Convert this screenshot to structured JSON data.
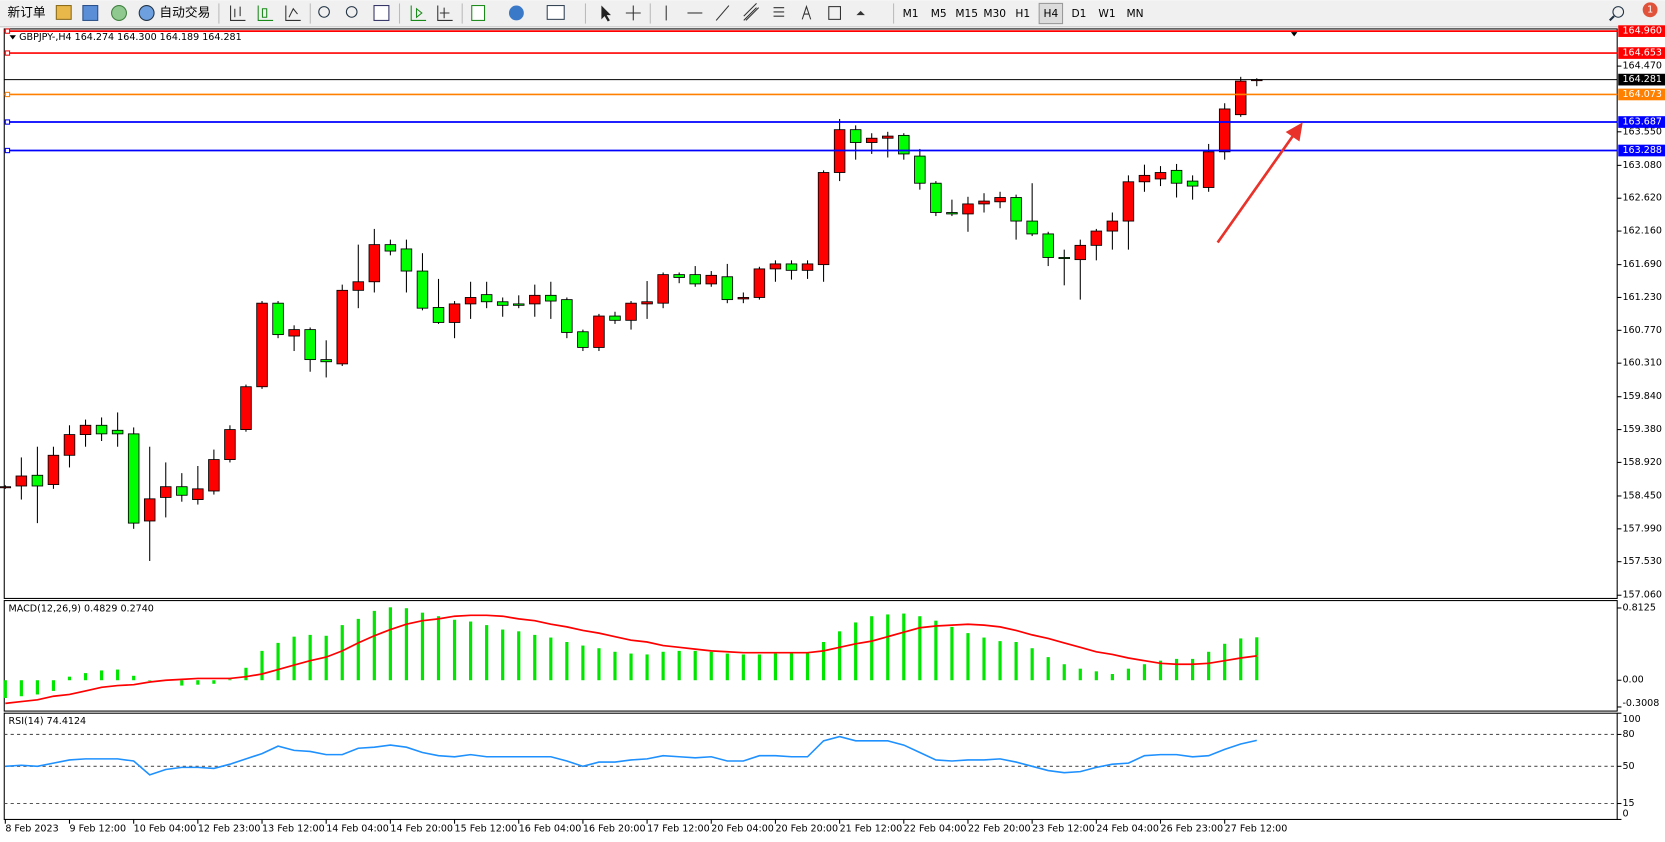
{
  "toolbar": {
    "new_order": "新订单",
    "auto_trade": "自动交易",
    "timeframes": [
      "M1",
      "M5",
      "M15",
      "M30",
      "H1",
      "H4",
      "D1",
      "W1",
      "MN"
    ],
    "active_timeframe": "H4",
    "notifications": 1
  },
  "chart_data": [
    {
      "type": "candlestick",
      "title": "GBPJPY-,H4 164.274 164.300 164.189 164.281",
      "up_color": "#ff0000",
      "down_color": "#00ff00",
      "categories": [
        "8 Feb 2023",
        null,
        null,
        null,
        "9 Feb 12:00",
        null,
        null,
        null,
        "10 Feb 04:00",
        null,
        null,
        null,
        "12 Feb 23:00",
        null,
        null,
        null,
        "13 Feb 12:00",
        null,
        null,
        null,
        "14 Feb 04:00",
        null,
        null,
        null,
        "14 Feb 20:00",
        null,
        null,
        null,
        "15 Feb 12:00",
        null,
        null,
        null,
        "16 Feb 04:00",
        null,
        null,
        null,
        "16 Feb 20:00",
        null,
        null,
        null,
        "17 Feb 12:00",
        null,
        null,
        null,
        "20 Feb 04:00",
        null,
        null,
        null,
        "20 Feb 20:00",
        null,
        null,
        null,
        "21 Feb 12:00",
        null,
        null,
        null,
        "22 Feb 04:00",
        null,
        null,
        null,
        "22 Feb 20:00",
        null,
        null,
        null,
        "23 Feb 12:00",
        null,
        null,
        null,
        "24 Feb 04:00",
        null,
        null,
        null,
        "26 Feb 23:00",
        null,
        null,
        null,
        "27 Feb 12:00",
        null,
        null
      ],
      "ohlc": [
        [
          158.57,
          158.6,
          158.55,
          158.58
        ],
        [
          158.59,
          158.99,
          158.4,
          158.73
        ],
        [
          158.74,
          159.14,
          158.07,
          158.59
        ],
        [
          158.61,
          159.14,
          158.55,
          159.02
        ],
        [
          159.02,
          159.44,
          158.85,
          159.31
        ],
        [
          159.31,
          159.52,
          159.14,
          159.44
        ],
        [
          159.44,
          159.55,
          159.22,
          159.32
        ],
        [
          159.37,
          159.62,
          159.14,
          159.32
        ],
        [
          159.32,
          159.41,
          157.99,
          158.07
        ],
        [
          158.1,
          159.14,
          157.54,
          158.41
        ],
        [
          158.43,
          158.92,
          158.15,
          158.58
        ],
        [
          158.58,
          158.77,
          158.37,
          158.46
        ],
        [
          158.4,
          158.87,
          158.33,
          158.55
        ],
        [
          158.52,
          159.1,
          158.47,
          158.96
        ],
        [
          158.96,
          159.44,
          158.92,
          159.38
        ],
        [
          159.38,
          160.01,
          159.35,
          159.98
        ],
        [
          159.98,
          161.18,
          159.95,
          161.15
        ],
        [
          161.15,
          161.18,
          160.66,
          160.71
        ],
        [
          160.69,
          160.84,
          160.48,
          160.78
        ],
        [
          160.78,
          160.81,
          160.19,
          160.36
        ],
        [
          160.36,
          160.63,
          160.11,
          160.33
        ],
        [
          160.3,
          161.41,
          160.27,
          161.33
        ],
        [
          161.33,
          161.97,
          161.08,
          161.45
        ],
        [
          161.45,
          162.19,
          161.3,
          161.97
        ],
        [
          161.97,
          162.04,
          161.82,
          161.88
        ],
        [
          161.91,
          162.04,
          161.3,
          161.6
        ],
        [
          161.6,
          161.85,
          161.05,
          161.08
        ],
        [
          161.09,
          161.49,
          160.86,
          160.88
        ],
        [
          160.88,
          161.18,
          160.66,
          161.14
        ],
        [
          161.14,
          161.45,
          160.93,
          161.23
        ],
        [
          161.27,
          161.45,
          161.08,
          161.17
        ],
        [
          161.17,
          161.23,
          160.96,
          161.12
        ],
        [
          161.14,
          161.26,
          161.08,
          161.12
        ],
        [
          161.14,
          161.41,
          160.96,
          161.26
        ],
        [
          161.26,
          161.45,
          160.93,
          161.18
        ],
        [
          161.2,
          161.23,
          160.66,
          160.74
        ],
        [
          160.75,
          160.78,
          160.48,
          160.53
        ],
        [
          160.53,
          161.0,
          160.48,
          160.97
        ],
        [
          160.97,
          161.03,
          160.86,
          160.91
        ],
        [
          160.91,
          161.18,
          160.78,
          161.15
        ],
        [
          161.14,
          161.46,
          160.93,
          161.17
        ],
        [
          161.15,
          161.58,
          161.08,
          161.55
        ],
        [
          161.55,
          161.58,
          161.43,
          161.51
        ],
        [
          161.55,
          161.67,
          161.38,
          161.42
        ],
        [
          161.42,
          161.6,
          161.38,
          161.54
        ],
        [
          161.52,
          161.7,
          161.15,
          161.2
        ],
        [
          161.21,
          161.3,
          161.15,
          161.23
        ],
        [
          161.23,
          161.66,
          161.2,
          161.63
        ],
        [
          161.63,
          161.75,
          161.45,
          161.7
        ],
        [
          161.7,
          161.75,
          161.48,
          161.61
        ],
        [
          161.61,
          161.75,
          161.49,
          161.7
        ],
        [
          161.69,
          163.01,
          161.45,
          162.98
        ],
        [
          162.98,
          163.73,
          162.86,
          163.58
        ],
        [
          163.58,
          163.64,
          163.16,
          163.4
        ],
        [
          163.4,
          163.53,
          163.24,
          163.46
        ],
        [
          163.46,
          163.55,
          163.19,
          163.49
        ],
        [
          163.5,
          163.53,
          163.16,
          163.24
        ],
        [
          163.21,
          163.31,
          162.74,
          162.83
        ],
        [
          162.83,
          162.86,
          162.37,
          162.42
        ],
        [
          162.42,
          162.6,
          162.37,
          162.4
        ],
        [
          162.4,
          162.64,
          162.15,
          162.54
        ],
        [
          162.54,
          162.69,
          162.42,
          162.58
        ],
        [
          162.57,
          162.71,
          162.48,
          162.63
        ],
        [
          162.63,
          162.67,
          162.04,
          162.3
        ],
        [
          162.3,
          162.83,
          162.09,
          162.12
        ],
        [
          162.12,
          162.15,
          161.67,
          161.79
        ],
        [
          161.79,
          161.9,
          161.4,
          161.78
        ],
        [
          161.76,
          162.04,
          161.2,
          161.96
        ],
        [
          161.96,
          162.19,
          161.75,
          162.16
        ],
        [
          162.16,
          162.42,
          161.9,
          162.3
        ],
        [
          162.3,
          162.94,
          161.9,
          162.85
        ],
        [
          162.85,
          163.09,
          162.71,
          162.94
        ],
        [
          162.89,
          163.07,
          162.79,
          162.98
        ],
        [
          163.01,
          163.1,
          162.63,
          162.83
        ],
        [
          162.86,
          162.94,
          162.6,
          162.79
        ],
        [
          162.77,
          163.38,
          162.71,
          163.27
        ],
        [
          163.27,
          163.95,
          163.16,
          163.87
        ],
        [
          163.79,
          164.32,
          163.76,
          164.26
        ],
        [
          164.274,
          164.3,
          164.189,
          164.281
        ]
      ],
      "ylim": [
        157.03,
        164.97
      ],
      "yticks": [
        {
          "value": 164.47,
          "label": "164.470"
        },
        {
          "value": 163.55,
          "label": "163.550"
        },
        {
          "value": 163.08,
          "label": "163.080"
        },
        {
          "value": 162.62,
          "label": "162.620"
        },
        {
          "value": 162.16,
          "label": "162.160"
        },
        {
          "value": 161.69,
          "label": "161.690"
        },
        {
          "value": 161.23,
          "label": "161.230"
        },
        {
          "value": 160.77,
          "label": "160.770"
        },
        {
          "value": 160.31,
          "label": "160.310"
        },
        {
          "value": 159.84,
          "label": "159.840"
        },
        {
          "value": 159.38,
          "label": "159.380"
        },
        {
          "value": 158.92,
          "label": "158.920"
        },
        {
          "value": 158.45,
          "label": "158.450"
        },
        {
          "value": 157.99,
          "label": "157.990"
        },
        {
          "value": 157.53,
          "label": "157.530"
        },
        {
          "value": 157.06,
          "label": "157.060"
        }
      ],
      "levels": [
        {
          "value": 164.96,
          "label": "164.960",
          "color": "#ff0000"
        },
        {
          "value": 164.653,
          "label": "164.653",
          "color": "#ff0000"
        },
        {
          "value": 164.073,
          "label": "164.073",
          "color": "#ff8000"
        },
        {
          "value": 163.687,
          "label": "163.687",
          "color": "#0000ff"
        },
        {
          "value": 163.288,
          "label": "163.288",
          "color": "#0000ff"
        }
      ],
      "last_price": {
        "value": 164.281,
        "label": "164.281",
        "color": "#000000"
      }
    },
    {
      "type": "macd",
      "title": "MACD(12,26,9) 0.4829 0.2740",
      "histogram": {
        "color": "#00e600",
        "values": [
          -0.2,
          -0.18,
          -0.16,
          -0.12,
          0.04,
          0.08,
          0.11,
          0.12,
          0.05,
          0.0,
          0.0,
          -0.06,
          -0.05,
          -0.04,
          0.01,
          0.14,
          0.33,
          0.42,
          0.49,
          0.51,
          0.5,
          0.62,
          0.69,
          0.78,
          0.82,
          0.81,
          0.76,
          0.72,
          0.68,
          0.66,
          0.62,
          0.57,
          0.55,
          0.51,
          0.48,
          0.43,
          0.39,
          0.36,
          0.32,
          0.3,
          0.29,
          0.32,
          0.33,
          0.33,
          0.32,
          0.3,
          0.29,
          0.29,
          0.3,
          0.31,
          0.31,
          0.43,
          0.55,
          0.65,
          0.72,
          0.74,
          0.75,
          0.72,
          0.67,
          0.6,
          0.53,
          0.48,
          0.44,
          0.43,
          0.36,
          0.26,
          0.18,
          0.13,
          0.1,
          0.07,
          0.13,
          0.18,
          0.22,
          0.24,
          0.24,
          0.32,
          0.41,
          0.47,
          0.4829
        ]
      },
      "signal": {
        "color": "#ff0000",
        "values": [
          -0.26,
          -0.24,
          -0.22,
          -0.18,
          -0.16,
          -0.12,
          -0.08,
          -0.06,
          -0.05,
          -0.02,
          0.0,
          0.01,
          0.02,
          0.02,
          0.02,
          0.04,
          0.07,
          0.12,
          0.17,
          0.22,
          0.26,
          0.33,
          0.42,
          0.5,
          0.57,
          0.63,
          0.67,
          0.69,
          0.72,
          0.73,
          0.73,
          0.72,
          0.69,
          0.67,
          0.63,
          0.6,
          0.56,
          0.53,
          0.49,
          0.45,
          0.43,
          0.39,
          0.37,
          0.35,
          0.33,
          0.32,
          0.31,
          0.31,
          0.31,
          0.31,
          0.31,
          0.33,
          0.37,
          0.41,
          0.44,
          0.49,
          0.54,
          0.59,
          0.61,
          0.62,
          0.63,
          0.62,
          0.6,
          0.56,
          0.51,
          0.47,
          0.42,
          0.37,
          0.32,
          0.29,
          0.25,
          0.22,
          0.19,
          0.18,
          0.18,
          0.19,
          0.22,
          0.25,
          0.274
        ]
      },
      "ylim": [
        -0.335,
        0.896
      ],
      "yticks": [
        0.8125,
        {
          "value": 0,
          "label": "0.00"
        },
        -0.3008
      ]
    },
    {
      "type": "line",
      "title": "RSI(14) 74.4124",
      "color": "#1e90ff",
      "values": [
        50,
        51,
        50,
        53,
        56,
        57,
        57,
        57,
        55,
        42,
        47,
        49,
        49,
        48,
        52,
        57,
        62,
        69,
        65,
        64,
        61,
        61,
        67,
        68,
        70,
        68,
        63,
        60,
        59,
        61,
        59,
        59,
        59,
        59,
        59,
        55,
        50,
        54,
        54,
        56,
        57,
        60,
        59,
        58,
        59,
        55,
        55,
        60,
        60,
        59,
        59,
        74,
        78,
        74,
        74,
        74,
        70,
        63,
        56,
        55,
        56,
        56,
        57,
        54,
        50,
        46,
        44,
        45,
        49,
        52,
        53,
        60,
        61,
        61,
        59,
        60,
        66,
        71,
        74.4124
      ],
      "ylim": [
        0,
        100
      ],
      "yticks": [
        100,
        80,
        50,
        15,
        0
      ],
      "levels": [
        80,
        50,
        15
      ]
    }
  ]
}
